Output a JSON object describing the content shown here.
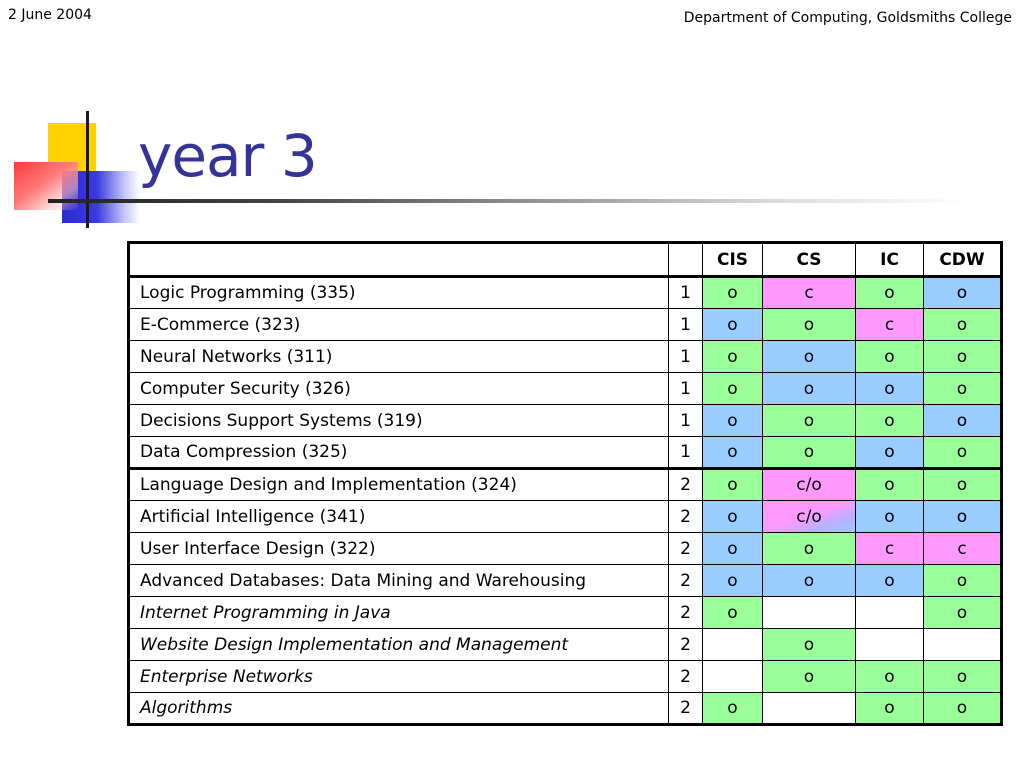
{
  "header": {
    "date": "2 June 2004",
    "institution": "Department of Computing, Goldsmiths College"
  },
  "slide": {
    "title": "year 3"
  },
  "table": {
    "columns": [
      "",
      "",
      "CIS",
      "CS",
      "IC",
      "CDW"
    ],
    "rows": [
      {
        "name": "Logic Programming (335)",
        "italic": false,
        "year": "1",
        "cells": [
          "o",
          "c",
          "o",
          "o"
        ],
        "colors": [
          "g",
          "p",
          "g",
          "b"
        ]
      },
      {
        "name": "E-Commerce (323)",
        "italic": false,
        "year": "1",
        "cells": [
          "o",
          "o",
          "c",
          "o"
        ],
        "colors": [
          "b",
          "g",
          "p",
          "g"
        ]
      },
      {
        "name": "Neural Networks (311)",
        "italic": false,
        "year": "1",
        "cells": [
          "o",
          "o",
          "o",
          "o"
        ],
        "colors": [
          "g",
          "b",
          "g",
          "g"
        ]
      },
      {
        "name": "Computer Security (326)",
        "italic": false,
        "year": "1",
        "cells": [
          "o",
          "o",
          "o",
          "o"
        ],
        "colors": [
          "g",
          "b",
          "b",
          "g"
        ]
      },
      {
        "name": "Decisions Support Systems (319)",
        "italic": false,
        "year": "1",
        "cells": [
          "o",
          "o",
          "o",
          "o"
        ],
        "colors": [
          "b",
          "g",
          "g",
          "b"
        ]
      },
      {
        "name": "Data Compression (325)",
        "italic": false,
        "year": "1",
        "cells": [
          "o",
          "o",
          "o",
          "o"
        ],
        "colors": [
          "b",
          "g",
          "b",
          "g"
        ]
      },
      {
        "name": "Language Design and Implementation (324)",
        "italic": false,
        "year": "2",
        "cells": [
          "o",
          "c/o",
          "o",
          "o"
        ],
        "colors": [
          "g",
          "p",
          "g",
          "g"
        ]
      },
      {
        "name": "Artificial Intelligence (341)",
        "italic": false,
        "year": "2",
        "cells": [
          "o",
          "c/o",
          "o",
          "o"
        ],
        "colors": [
          "b",
          "pb",
          "b",
          "b"
        ]
      },
      {
        "name": "User Interface Design (322)",
        "italic": false,
        "year": "2",
        "cells": [
          "o",
          "o",
          "c",
          "c"
        ],
        "colors": [
          "b",
          "g",
          "p",
          "p"
        ]
      },
      {
        "name": "Advanced Databases: Data Mining and Warehousing",
        "italic": false,
        "year": "2",
        "cells": [
          "o",
          "o",
          "o",
          "o"
        ],
        "colors": [
          "b",
          "b",
          "b",
          "g"
        ]
      },
      {
        "name": "Internet Programming in Java",
        "italic": true,
        "year": "2",
        "cells": [
          "o",
          "",
          "",
          "o"
        ],
        "colors": [
          "g",
          "w",
          "w",
          "g"
        ]
      },
      {
        "name": "Website Design Implementation and Management",
        "italic": true,
        "year": "2",
        "cells": [
          "",
          "o",
          "",
          ""
        ],
        "colors": [
          "w",
          "g",
          "w",
          "w"
        ]
      },
      {
        "name": "Enterprise Networks",
        "italic": true,
        "year": "2",
        "cells": [
          "",
          "o",
          "o",
          "o"
        ],
        "colors": [
          "w",
          "g",
          "g",
          "g"
        ]
      },
      {
        "name": "Algorithms",
        "italic": true,
        "year": "2",
        "cells": [
          "o",
          "",
          "o",
          "o"
        ],
        "colors": [
          "g",
          "w",
          "g",
          "g"
        ]
      }
    ]
  }
}
